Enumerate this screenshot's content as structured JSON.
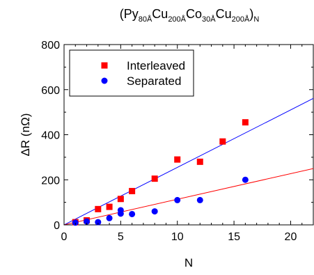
{
  "chart_data": {
    "type": "scatter",
    "title": {
      "segments": [
        {
          "text": "(Py",
          "sub": false
        },
        {
          "text": "80Å",
          "sub": true
        },
        {
          "text": "Cu",
          "sub": false
        },
        {
          "text": "200Å",
          "sub": true
        },
        {
          "text": "Co",
          "sub": false
        },
        {
          "text": "30Å",
          "sub": true
        },
        {
          "text": "Cu",
          "sub": false
        },
        {
          "text": "200Å",
          "sub": true
        },
        {
          "text": ")",
          "sub": false
        },
        {
          "text": "N",
          "sub": true
        }
      ]
    },
    "xlabel": "N",
    "ylabel": "ΔR (nΩ)",
    "xlim": [
      0,
      22
    ],
    "ylim": [
      0,
      800
    ],
    "xticks": [
      0,
      5,
      10,
      15,
      20
    ],
    "yticks": [
      0,
      200,
      400,
      600,
      800
    ],
    "grid": false,
    "legend_position": "top-left",
    "series": [
      {
        "name": "Interleaved",
        "marker": "square",
        "color": "#ff0000",
        "points": [
          [
            1,
            12
          ],
          [
            2,
            20
          ],
          [
            3,
            70
          ],
          [
            4,
            80
          ],
          [
            5,
            115
          ],
          [
            6,
            150
          ],
          [
            8,
            205
          ],
          [
            10,
            290
          ],
          [
            12,
            280
          ],
          [
            14,
            370
          ],
          [
            16,
            455
          ]
        ],
        "fit_line": {
          "color": "#0000ff",
          "x": [
            0,
            22
          ],
          "y": [
            0,
            561
          ]
        }
      },
      {
        "name": "Separated",
        "marker": "circle",
        "color": "#0000ff",
        "points": [
          [
            1,
            10
          ],
          [
            2,
            15
          ],
          [
            3,
            12
          ],
          [
            4,
            30
          ],
          [
            5,
            50
          ],
          [
            5,
            65
          ],
          [
            6,
            48
          ],
          [
            8,
            60
          ],
          [
            10,
            110
          ],
          [
            12,
            110
          ],
          [
            16,
            200
          ]
        ],
        "fit_line": {
          "color": "#ff0000",
          "x": [
            0,
            22
          ],
          "y": [
            0,
            250
          ]
        }
      }
    ]
  }
}
